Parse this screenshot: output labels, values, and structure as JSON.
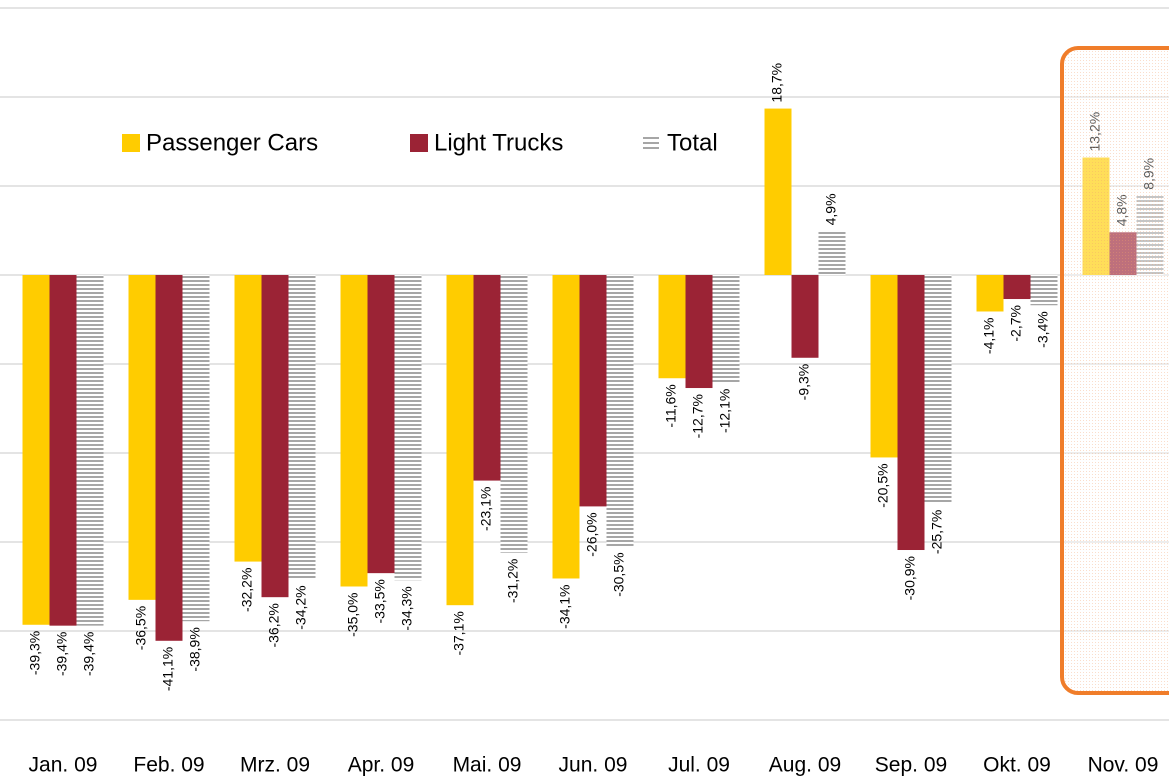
{
  "chart_data": {
    "type": "bar",
    "categories": [
      "Jan. 09",
      "Feb. 09",
      "Mrz. 09",
      "Apr. 09",
      "Mai. 09",
      "Jun. 09",
      "Jul. 09",
      "Aug. 09",
      "Sep. 09",
      "Okt. 09",
      "Nov. 09"
    ],
    "series": [
      {
        "name": "Passenger Cars",
        "color": "#ffcc00",
        "values": [
          -39.3,
          -36.5,
          -32.2,
          -35.0,
          -37.1,
          -34.1,
          -11.6,
          18.7,
          -20.5,
          -4.1,
          13.2
        ],
        "value_labels": [
          "-39,3%",
          "-36,5%",
          "-32,2%",
          "-35,0%",
          "-37,1%",
          "-34,1%",
          "-11,6%",
          "18,7%",
          "-20,5%",
          "-4,1%",
          "13,2%"
        ]
      },
      {
        "name": "Light Trucks",
        "color": "#9b2335",
        "values": [
          -39.4,
          -41.1,
          -36.2,
          -33.5,
          -23.1,
          -26.0,
          -12.7,
          -9.3,
          -30.9,
          -2.7,
          4.8
        ],
        "value_labels": [
          "-39,4%",
          "-41,1%",
          "-36,2%",
          "-33,5%",
          "-23,1%",
          "-26,0%",
          "-12,7%",
          "-9,3%",
          "-30,9%",
          "-2,7%",
          "4,8%"
        ]
      },
      {
        "name": "Total",
        "color": "#a6a6a6",
        "values": [
          -39.4,
          -38.9,
          -34.2,
          -34.3,
          -31.2,
          -30.5,
          -12.1,
          4.9,
          -25.7,
          -3.4,
          8.9
        ],
        "value_labels": [
          "-39,4%",
          "-38,9%",
          "-34,2%",
          "-34,3%",
          "-31,2%",
          "-30,5%",
          "-12,1%",
          "4,9%",
          "-25,7%",
          "-3,4%",
          "8,9%"
        ]
      }
    ],
    "ylim": [
      -50,
      30
    ],
    "yticks": [
      -50,
      -40,
      -30,
      -20,
      -10,
      0,
      10,
      20,
      30
    ],
    "grid": true
  }
}
